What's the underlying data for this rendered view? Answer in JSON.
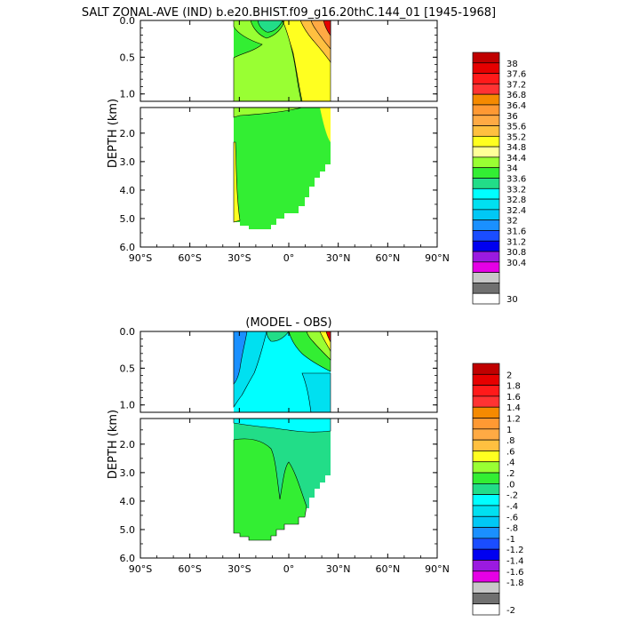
{
  "chart_data": [
    {
      "type": "heatmap",
      "title": "SALT ZONAL-AVE (IND) b.e20.BHIST.f09_g16.20thC.144_01 [1945-1968]",
      "ylabel": "DEPTH (km)",
      "x_ticks": [
        "90°S",
        "60°S",
        "30°S",
        "0°",
        "30°N",
        "60°N",
        "90°N"
      ],
      "y_ticks_upper": [
        "0.0",
        "0.5",
        "1.0"
      ],
      "y_ticks_lower": [
        "2.0",
        "3.0",
        "4.0",
        "5.0",
        "6.0"
      ],
      "xlim": [
        -90,
        90
      ],
      "ylim_km": [
        6.0,
        0.0
      ],
      "colorbar": {
        "labels": [
          "38",
          "37.6",
          "37.2",
          "36.8",
          "36.4",
          "36",
          "35.6",
          "35.2",
          "34.8",
          "34.4",
          "34",
          "33.6",
          "33.2",
          "32.8",
          "32.4",
          "32",
          "31.6",
          "31.2",
          "30.8",
          "30.4",
          "30"
        ],
        "colors": [
          "#c00000",
          "#e60000",
          "#ff1a1a",
          "#ff3333",
          "#f58a00",
          "#ff9933",
          "#ffaa44",
          "#ffc040",
          "#ffff20",
          "#ffff99",
          "#99ff33",
          "#33ee33",
          "#22dd88",
          "#00ffff",
          "#00e0f0",
          "#00c8f5",
          "#1a90ff",
          "#1a4dff",
          "#0000f0",
          "#9b1ae0",
          "#e600e6",
          "#c8c8c8",
          "#707070",
          "#ffffff"
        ]
      }
    },
    {
      "type": "heatmap",
      "title": "(MODEL - OBS)",
      "ylabel": "DEPTH (km)",
      "x_ticks": [
        "90°S",
        "60°S",
        "30°S",
        "0°",
        "30°N",
        "60°N",
        "90°N"
      ],
      "y_ticks_upper": [
        "0.0",
        "0.5",
        "1.0"
      ],
      "y_ticks_lower": [
        "2.0",
        "3.0",
        "4.0",
        "5.0",
        "6.0"
      ],
      "xlim": [
        -90,
        90
      ],
      "ylim_km": [
        6.0,
        0.0
      ],
      "colorbar": {
        "labels": [
          "2",
          "1.8",
          "1.6",
          "1.4",
          "1.2",
          "1",
          ".8",
          ".6",
          ".4",
          ".2",
          ".0",
          "-.2",
          "-.4",
          "-.6",
          "-.8",
          "-1",
          "-1.2",
          "-1.4",
          "-1.6",
          "-1.8",
          "-2"
        ],
        "colors": [
          "#c00000",
          "#e60000",
          "#ff1a1a",
          "#ff3333",
          "#f58a00",
          "#ff9933",
          "#ffaa44",
          "#ffc040",
          "#ffff20",
          "#99ff33",
          "#33ee33",
          "#22dd88",
          "#00ffff",
          "#00e0f0",
          "#00c8f5",
          "#1a90ff",
          "#1a4dff",
          "#0000f0",
          "#9b1ae0",
          "#e600e6",
          "#c8c8c8",
          "#707070",
          "#ffffff"
        ]
      }
    }
  ]
}
